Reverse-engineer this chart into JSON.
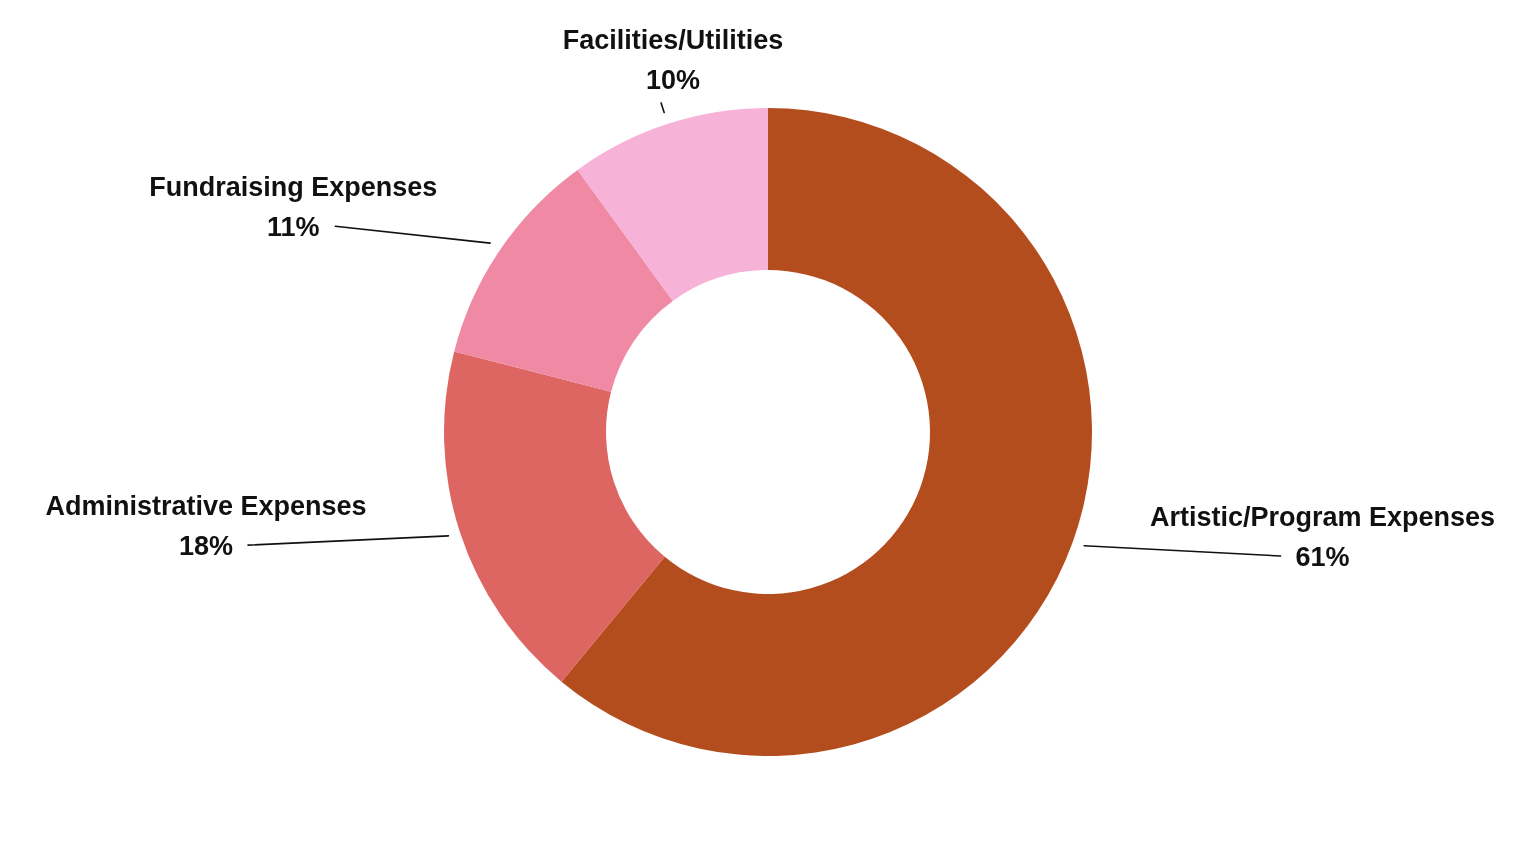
{
  "chart_data": {
    "type": "donut",
    "categories": [
      "Artistic/Program Expenses",
      "Administrative Expenses",
      "Fundraising Expenses",
      "Facilities/Utilities"
    ],
    "values": [
      61,
      18,
      11,
      10
    ],
    "colors": [
      "#b44d1d",
      "#dd6662",
      "#ef89a4",
      "#f7b2d7"
    ],
    "value_labels": [
      "61%",
      "18%",
      "11%",
      "10%"
    ]
  }
}
